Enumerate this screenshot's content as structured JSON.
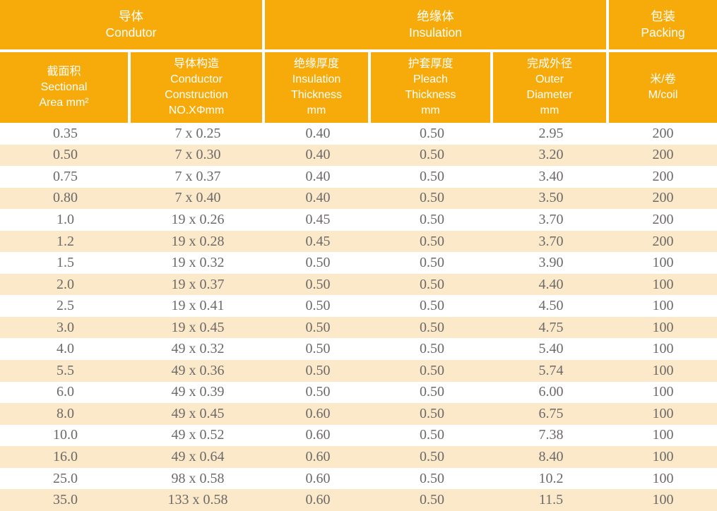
{
  "table": {
    "header_groups": [
      {
        "label": "导体\nCondutor"
      },
      {
        "label": "绝缘体\nInsulation"
      },
      {
        "label": "包装\nPacking"
      }
    ],
    "columns": [
      {
        "label": "截面积\nSectional\nArea mm²"
      },
      {
        "label": "导体构造\nConductor\nConstruction\nNO.XΦmm"
      },
      {
        "label": "绝缘厚度\nInsulation\nThickness\nmm"
      },
      {
        "label": "护套厚度\nPleach\nThickness\nmm"
      },
      {
        "label": "完成外径\nOuter\nDiameter\nmm"
      },
      {
        "label": "米/卷\nM/coil"
      }
    ],
    "rows": [
      [
        "0.35",
        "7 x 0.25",
        "0.40",
        "0.50",
        "2.95",
        "200"
      ],
      [
        "0.50",
        "7 x 0.30",
        "0.40",
        "0.50",
        "3.20",
        "200"
      ],
      [
        "0.75",
        "7 x 0.37",
        "0.40",
        "0.50",
        "3.40",
        "200"
      ],
      [
        "0.80",
        "7 x 0.40",
        "0.40",
        "0.50",
        "3.50",
        "200"
      ],
      [
        "1.0",
        "19 x 0.26",
        "0.45",
        "0.50",
        "3.70",
        "200"
      ],
      [
        "1.2",
        "19 x 0.28",
        "0.45",
        "0.50",
        "3.70",
        "200"
      ],
      [
        "1.5",
        "19 x 0.32",
        "0.50",
        "0.50",
        "3.90",
        "100"
      ],
      [
        "2.0",
        "19 x 0.37",
        "0.50",
        "0.50",
        "4.40",
        "100"
      ],
      [
        "2.5",
        "19 x 0.41",
        "0.50",
        "0.50",
        "4.50",
        "100"
      ],
      [
        "3.0",
        "19 x 0.45",
        "0.50",
        "0.50",
        "4.75",
        "100"
      ],
      [
        "4.0",
        "49 x 0.32",
        "0.50",
        "0.50",
        "5.40",
        "100"
      ],
      [
        "5.5",
        "49 x 0.36",
        "0.50",
        "0.50",
        "5.74",
        "100"
      ],
      [
        "6.0",
        "49 x 0.39",
        "0.50",
        "0.50",
        "6.00",
        "100"
      ],
      [
        "8.0",
        "49 x 0.45",
        "0.60",
        "0.50",
        "6.75",
        "100"
      ],
      [
        "10.0",
        "49 x 0.52",
        "0.60",
        "0.50",
        "7.38",
        "100"
      ],
      [
        "16.0",
        "49 x 0.64",
        "0.60",
        "0.50",
        "8.40",
        "100"
      ],
      [
        "25.0",
        "98 x 0.58",
        "0.60",
        "0.50",
        "10.2",
        "100"
      ],
      [
        "35.0",
        "133 x 0.58",
        "0.60",
        "0.50",
        "11.5",
        "100"
      ]
    ]
  },
  "colors": {
    "header_bg": "#F7AB0A",
    "stripe_bg": "#FBE9C9",
    "data_text": "#6C6968",
    "header_text": "#FFFFFF"
  }
}
